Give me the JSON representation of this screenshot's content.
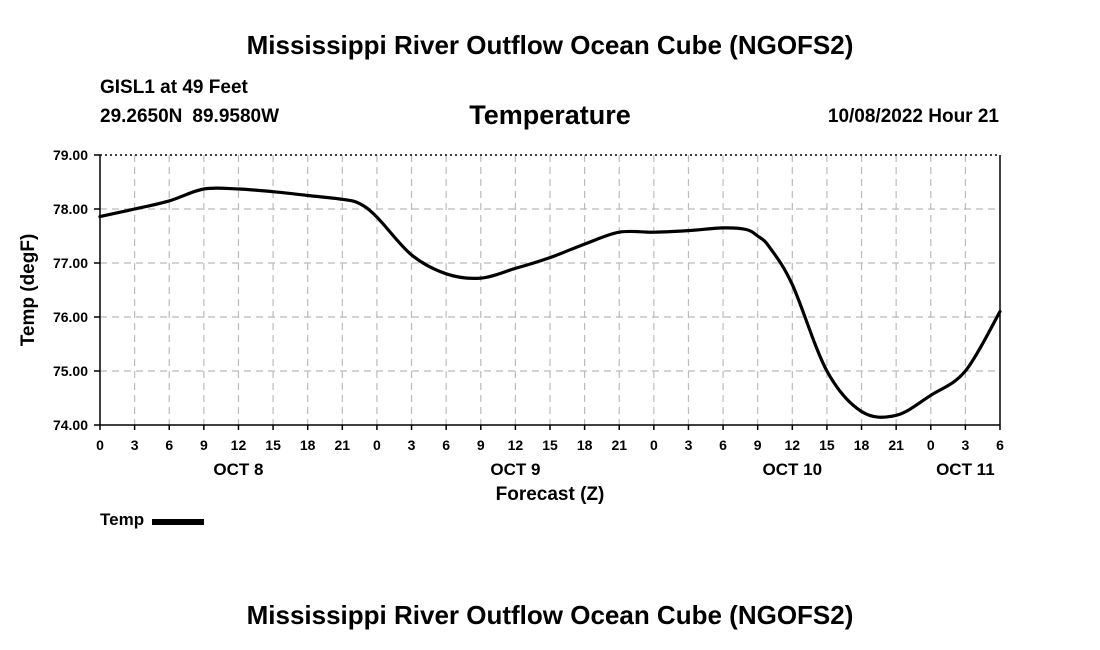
{
  "header": {
    "title": "Mississippi River Outflow Ocean Cube (NGOFS2)",
    "station": "GISL1 at 49 Feet",
    "lat": "29.2650N",
    "lon": "89.9580W",
    "parameter": "Temperature",
    "timestamp": "10/08/2022 Hour 21"
  },
  "footer": {
    "title": "Mississippi River Outflow Ocean Cube (NGOFS2)"
  },
  "legend": {
    "label": "Temp"
  },
  "chart_data": {
    "type": "line",
    "title": "Temperature",
    "xlabel": "Forecast (Z)",
    "ylabel": "Temp (degF)",
    "xlim": [
      0,
      78
    ],
    "ylim": [
      74.0,
      79.0
    ],
    "grid": true,
    "line_color": "#000000",
    "grid_color": "#bbbbbb",
    "y_ticks": [
      74.0,
      75.0,
      76.0,
      77.0,
      78.0,
      79.0
    ],
    "y_tick_labels": [
      "74.00",
      "75.00",
      "76.00",
      "77.00",
      "78.00",
      "79.00"
    ],
    "x_ticks": [
      0,
      3,
      6,
      9,
      12,
      15,
      18,
      21,
      24,
      27,
      30,
      33,
      36,
      39,
      42,
      45,
      48,
      51,
      54,
      57,
      60,
      63,
      66,
      69,
      72,
      75,
      78
    ],
    "x_tick_labels": [
      "0",
      "3",
      "6",
      "9",
      "12",
      "15",
      "18",
      "21",
      "0",
      "3",
      "6",
      "9",
      "12",
      "15",
      "18",
      "21",
      "0",
      "3",
      "6",
      "9",
      "12",
      "15",
      "18",
      "21",
      "0",
      "3",
      "6"
    ],
    "day_labels": [
      {
        "label": "OCT 8",
        "hour": 12
      },
      {
        "label": "OCT 9",
        "hour": 36
      },
      {
        "label": "OCT 10",
        "hour": 60
      },
      {
        "label": "OCT 11",
        "hour": 75
      }
    ],
    "series": [
      {
        "name": "Temp",
        "x": [
          0,
          3,
          6,
          9,
          12,
          15,
          18,
          21,
          22.5,
          24,
          27,
          30,
          33,
          36,
          39,
          42,
          45,
          48,
          51,
          54,
          56,
          57,
          58,
          60,
          63,
          66,
          69,
          72,
          75,
          78
        ],
        "values": [
          77.86,
          78.0,
          78.15,
          78.37,
          78.37,
          78.32,
          78.25,
          78.18,
          78.1,
          77.85,
          77.15,
          76.8,
          76.72,
          76.9,
          77.1,
          77.35,
          77.57,
          77.57,
          77.6,
          77.65,
          77.62,
          77.5,
          77.3,
          76.6,
          75.0,
          74.25,
          74.18,
          74.55,
          75.0,
          76.1
        ]
      }
    ]
  }
}
